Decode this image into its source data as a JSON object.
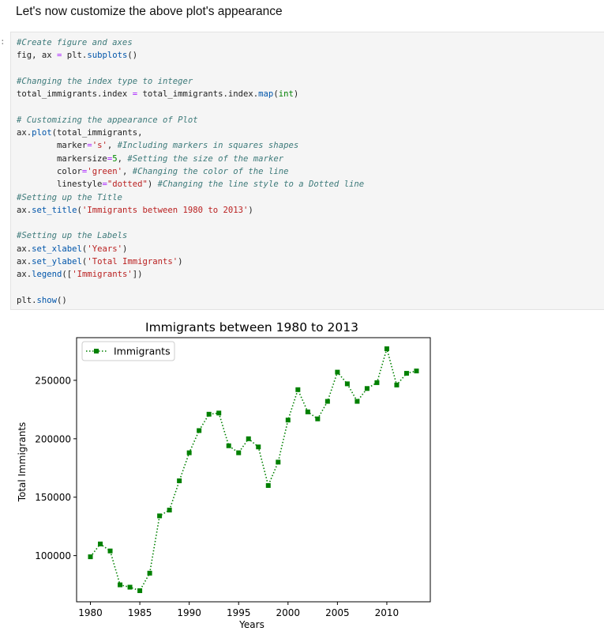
{
  "heading": "Let's now customize the above plot's appearance",
  "prompt": ":",
  "code": {
    "l1": "#Create figure and axes",
    "l2a": "fig, ax ",
    "l2b": "=",
    "l2c": " plt.",
    "l2d": "subplots",
    "l2e": "()",
    "l4": "#Changing the index type to integer",
    "l5a": "total_immigrants.index ",
    "l5b": "=",
    "l5c": " total_immigrants.index.",
    "l5d": "map",
    "l5e": "(",
    "l5f": "int",
    "l5g": ")",
    "l7": "# Customizing the appearance of Plot",
    "l8a": "ax.",
    "l8b": "plot",
    "l8c": "(total_immigrants,",
    "l9a": "        marker",
    "l9b": "=",
    "l9c": "'s'",
    "l9d": ", ",
    "l9e": "#Including markers in squares shapes",
    "l10a": "        markersize",
    "l10b": "=",
    "l10c": "5",
    "l10d": ", ",
    "l10e": "#Setting the size of the marker",
    "l11a": "        color",
    "l11b": "=",
    "l11c": "'green'",
    "l11d": ", ",
    "l11e": "#Changing the color of the line",
    "l12a": "        linestyle",
    "l12b": "=",
    "l12c": "\"dotted\"",
    "l12d": ") ",
    "l12e": "#Changing the line style to a Dotted line",
    "l13": "#Setting up the Title",
    "l14a": "ax.",
    "l14b": "set_title",
    "l14c": "(",
    "l14d": "'Immigrants between 1980 to 2013'",
    "l14e": ")",
    "l16": "#Setting up the Labels",
    "l17a": "ax.",
    "l17b": "set_xlabel",
    "l17c": "(",
    "l17d": "'Years'",
    "l17e": ")",
    "l18a": "ax.",
    "l18b": "set_ylabel",
    "l18c": "(",
    "l18d": "'Total Immigrants'",
    "l18e": ")",
    "l19a": "ax.",
    "l19b": "legend",
    "l19c": "([",
    "l19d": "'Immigrants'",
    "l19e": "])",
    "l21a": "plt.",
    "l21b": "show",
    "l21c": "()"
  },
  "colors": {
    "line": "#008000",
    "axes": "#000000"
  },
  "chart_data": {
    "type": "line",
    "title": "Immigrants between 1980 to 2013",
    "xlabel": "Years",
    "ylabel": "Total Immigrants",
    "xlim": [
      1978.6,
      2014.4
    ],
    "ylim": [
      60500,
      286500
    ],
    "xticks": [
      1980,
      1985,
      1990,
      1995,
      2000,
      2005,
      2010
    ],
    "yticks": [
      100000,
      150000,
      200000,
      250000
    ],
    "ytick_labels": [
      "100000",
      "150000",
      "200000",
      "250000"
    ],
    "legend": {
      "label": "Immigrants",
      "placement": "upper-left"
    },
    "marker": "s",
    "linestyle": "dotted",
    "series": [
      {
        "name": "Immigrants",
        "x": [
          1980,
          1981,
          1982,
          1983,
          1984,
          1985,
          1986,
          1987,
          1988,
          1989,
          1990,
          1991,
          1992,
          1993,
          1994,
          1995,
          1996,
          1997,
          1998,
          1999,
          2000,
          2001,
          2002,
          2003,
          2004,
          2005,
          2006,
          2007,
          2008,
          2009,
          2010,
          2011,
          2012,
          2013
        ],
        "values": [
          99000,
          110000,
          104000,
          75000,
          73000,
          70000,
          85000,
          134000,
          139000,
          164000,
          188000,
          207000,
          221000,
          222000,
          194000,
          188000,
          200000,
          193000,
          160000,
          180000,
          216000,
          242000,
          223000,
          217000,
          232000,
          257000,
          247000,
          232000,
          243000,
          248000,
          277000,
          246000,
          256000,
          258000
        ]
      }
    ]
  }
}
